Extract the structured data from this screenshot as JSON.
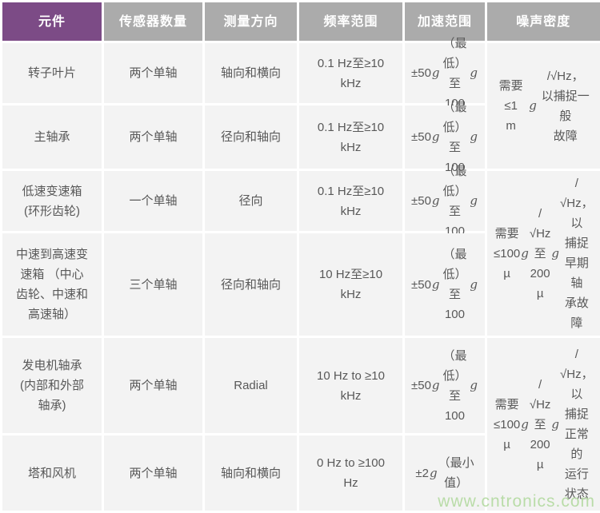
{
  "colors": {
    "header_accent_purple": "#7c4b86",
    "header_gray": "#ababab",
    "cell_background": "#f3f3f3",
    "body_text": "#585858",
    "watermark_green": "#b9dca8"
  },
  "table": {
    "headers": {
      "component": "元件",
      "sensors": "传感器数量",
      "direction": "测量方向",
      "frequency": "频率范围",
      "acceleration": "加速范围",
      "noise": "噪声密度"
    },
    "rows": [
      {
        "component": "转子叶片",
        "sensors": "两个单轴",
        "direction": "轴向和横向",
        "frequency": "0.1 Hz至≥10\nkHz",
        "acceleration": "±50 g（最\n低）至 100 g"
      },
      {
        "component": "主轴承",
        "sensors": "两个单轴",
        "direction": "径向和轴向",
        "frequency": "0.1 Hz至≥10\nkHz",
        "acceleration": "±50 g（最\n低）至 100 g"
      },
      {
        "component": "低速变速箱\n(环形齿轮)",
        "sensors": "一个单轴",
        "direction": "径向",
        "frequency": "0.1 Hz至≥10\nkHz",
        "acceleration": "±50 g（最\n低）至 100 g"
      },
      {
        "component": "中速到高速变\n速箱 （中心\n齿轮、中速和\n高速轴）",
        "sensors": "三个单轴",
        "direction": "径向和轴向",
        "frequency": "10 Hz至≥10\nkHz",
        "acceleration": "±50 g（最\n低）至 100 g"
      },
      {
        "component": "发电机轴承\n(内部和外部\n轴承)",
        "sensors": "两个单轴",
        "direction": "Radial",
        "frequency": "10 Hz to ≥10\nkHz",
        "acceleration": "±50 g（最\n低）至 100 g"
      },
      {
        "component": "塔和风机",
        "sensors": "两个单轴",
        "direction": "轴向和横向",
        "frequency": "0 Hz to ≥100\nHz",
        "acceleration": "±2 g（最小\n值）"
      }
    ],
    "noise": [
      {
        "rows_spanned": "1-2",
        "text": "需要≤1\nmg/√Hz，\n以捕捉一般\n故障"
      },
      {
        "rows_spanned": "3-4",
        "text": "需要≤100\nµg/√Hz至\n200 µg/\n√Hz， 以\n捕捉早期轴\n承故障"
      },
      {
        "rows_spanned": "5-6",
        "text": "需要≤100\nµg/√Hz至\n200 µg/\n√Hz， 以\n捕捉正常的\n运行状态"
      }
    ]
  },
  "watermark": {
    "text": "www.cntronics.com"
  }
}
